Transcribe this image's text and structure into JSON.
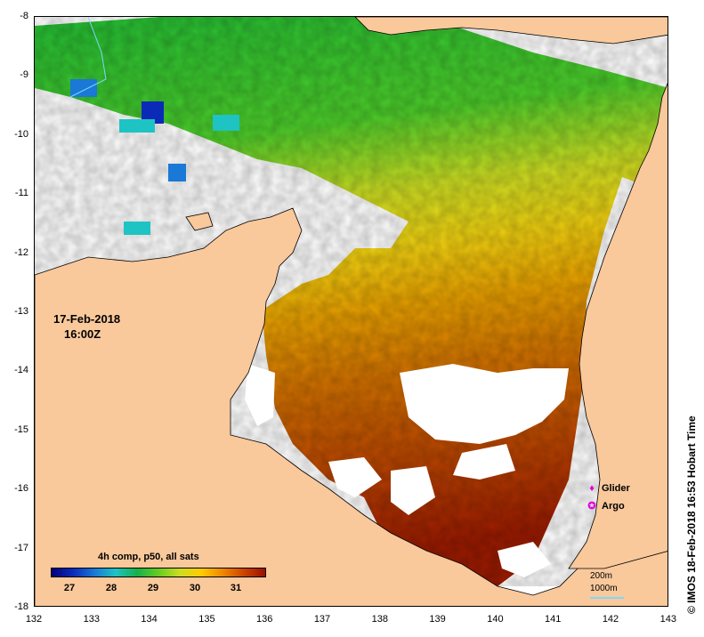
{
  "map": {
    "date": "17-Feb-2018",
    "time": "16:00Z",
    "lat_ticks": [
      "-8",
      "-9",
      "-10",
      "-11",
      "-12",
      "-13",
      "-14",
      "-15",
      "-16",
      "-17",
      "-18"
    ],
    "lon_ticks": [
      "132",
      "133",
      "134",
      "135",
      "136",
      "137",
      "138",
      "139",
      "140",
      "141",
      "142",
      "143"
    ],
    "lat_range": [
      -18,
      -8
    ],
    "lon_range": [
      132,
      143
    ]
  },
  "legend": {
    "title": "4h comp, p50, all sats",
    "ticks": [
      "27",
      "28",
      "29",
      "30",
      "31"
    ],
    "colors": [
      "#00007a",
      "#0c2ab8",
      "#1a78d6",
      "#1ec3c3",
      "#17b04a",
      "#66cc22",
      "#ccdd22",
      "#ffcc00",
      "#ee8800",
      "#cc4400",
      "#991100"
    ],
    "land_color": "#f9c89b"
  },
  "symbols": {
    "glider_label": "Glider",
    "argo_label": "Argo",
    "glider_mark": "♦",
    "argo_mark": "✪"
  },
  "scale": {
    "depth_200": "200m",
    "depth_1000": "1000m"
  },
  "credit": "© IMOS 18-Feb-2018 16:53 Hobart Time"
}
